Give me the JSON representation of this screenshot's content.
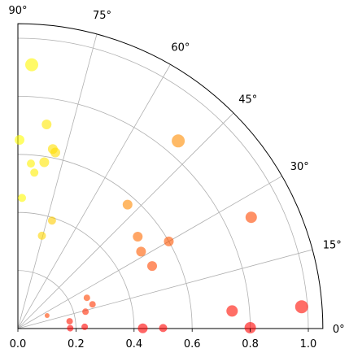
{
  "chart_data": {
    "type": "scatter",
    "projection": "polar-quadrant",
    "title": "",
    "radial_axis": {
      "range": [
        0,
        1.05
      ],
      "ticks": [
        0.0,
        0.2,
        0.4,
        0.6,
        0.8,
        1.0
      ],
      "tick_labels": [
        "0.0",
        "0.2",
        "0.4",
        "0.6",
        "0.8",
        "1.0"
      ]
    },
    "angular_axis": {
      "range_deg": [
        0,
        90
      ],
      "ticks_deg": [
        0,
        15,
        30,
        45,
        60,
        75,
        90
      ],
      "tick_labels": [
        "0°",
        "15°",
        "30°",
        "45°",
        "60°",
        "75°",
        "90°"
      ]
    },
    "grid": true,
    "colormap": "autumn (red at 0° → yellow at 90°)",
    "points": [
      {
        "r": 0.18,
        "theta_deg": 0.4,
        "size": 4
      },
      {
        "r": 0.23,
        "theta_deg": 1.5,
        "size": 4
      },
      {
        "r": 0.18,
        "theta_deg": 8.0,
        "size": 4
      },
      {
        "r": 0.11,
        "theta_deg": 24.0,
        "size": 3
      },
      {
        "r": 0.43,
        "theta_deg": 0.1,
        "size": 6
      },
      {
        "r": 0.5,
        "theta_deg": 0.2,
        "size": 5
      },
      {
        "r": 0.8,
        "theta_deg": 0.2,
        "size": 7
      },
      {
        "r": 0.74,
        "theta_deg": 4.7,
        "size": 7
      },
      {
        "r": 0.98,
        "theta_deg": 4.4,
        "size": 8
      },
      {
        "r": 0.24,
        "theta_deg": 14.0,
        "size": 4
      },
      {
        "r": 0.27,
        "theta_deg": 18.0,
        "size": 4
      },
      {
        "r": 0.26,
        "theta_deg": 24.0,
        "size": 4
      },
      {
        "r": 0.51,
        "theta_deg": 25.0,
        "size": 6
      },
      {
        "r": 0.6,
        "theta_deg": 30.0,
        "size": 6
      },
      {
        "r": 0.5,
        "theta_deg": 32.0,
        "size": 6
      },
      {
        "r": 0.52,
        "theta_deg": 37.5,
        "size": 6
      },
      {
        "r": 0.89,
        "theta_deg": 25.5,
        "size": 7
      },
      {
        "r": 0.57,
        "theta_deg": 48.5,
        "size": 6
      },
      {
        "r": 0.33,
        "theta_deg": 75.5,
        "size": 5
      },
      {
        "r": 0.39,
        "theta_deg": 72.5,
        "size": 5
      },
      {
        "r": 0.85,
        "theta_deg": 49.5,
        "size": 8
      },
      {
        "r": 0.45,
        "theta_deg": 88.2,
        "size": 5
      },
      {
        "r": 0.54,
        "theta_deg": 84.0,
        "size": 5
      },
      {
        "r": 0.57,
        "theta_deg": 85.5,
        "size": 5
      },
      {
        "r": 0.65,
        "theta_deg": 89.5,
        "size": 6
      },
      {
        "r": 0.58,
        "theta_deg": 81.0,
        "size": 6
      },
      {
        "r": 0.63,
        "theta_deg": 79.0,
        "size": 6
      },
      {
        "r": 0.62,
        "theta_deg": 78.0,
        "size": 6
      },
      {
        "r": 0.71,
        "theta_deg": 82.0,
        "size": 6
      },
      {
        "r": 0.91,
        "theta_deg": 87.0,
        "size": 8
      }
    ]
  }
}
